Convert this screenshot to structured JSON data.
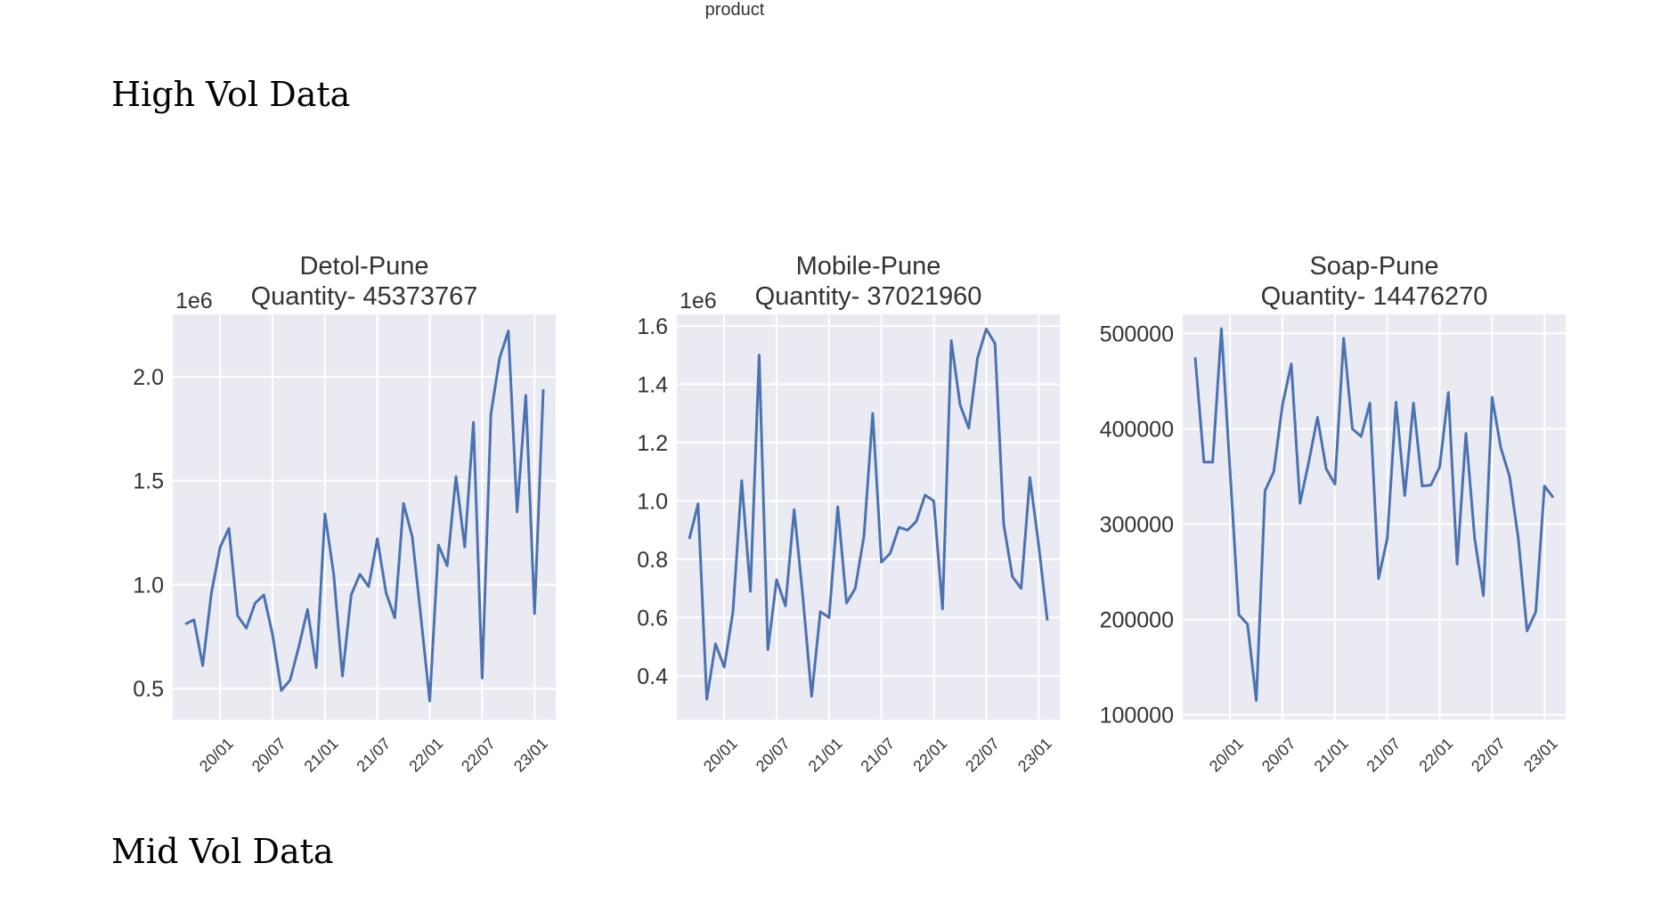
{
  "document": {
    "top_label": "product",
    "heading_high": "High Vol Data",
    "heading_mid": "Mid Vol Data"
  },
  "colors": {
    "line": "#4c72b0",
    "plot_bg": "#eaeaf2",
    "grid": "#ffffff",
    "text": "#333333"
  },
  "chart_data": [
    {
      "type": "line",
      "title": "Detol-Pune",
      "subtitle": "Quantity- 45373767",
      "offset_label": "1e6",
      "x_ticks": [
        "20/01",
        "20/07",
        "21/01",
        "21/07",
        "22/01",
        "22/07",
        "23/01"
      ],
      "y_ticks": [
        "0.5",
        "1.0",
        "1.5",
        "2.0"
      ],
      "y_tick_values": [
        500000,
        1000000,
        1500000,
        2000000
      ],
      "ylim": [
        350000,
        2300000
      ],
      "x_start": "2019-09",
      "grid": true,
      "values": [
        810000,
        830000,
        610000,
        960000,
        1180000,
        1270000,
        850000,
        790000,
        910000,
        950000,
        760000,
        490000,
        540000,
        700000,
        880000,
        600000,
        1340000,
        1050000,
        560000,
        950000,
        1050000,
        990000,
        1220000,
        960000,
        840000,
        1390000,
        1230000,
        840000,
        440000,
        1190000,
        1090000,
        1520000,
        1180000,
        1780000,
        550000,
        1820000,
        2090000,
        2220000,
        1350000,
        1910000,
        860000,
        1940000
      ]
    },
    {
      "type": "line",
      "title": "Mobile-Pune",
      "subtitle": "Quantity- 37021960",
      "offset_label": "1e6",
      "x_ticks": [
        "20/01",
        "20/07",
        "21/01",
        "21/07",
        "22/01",
        "22/07",
        "23/01"
      ],
      "y_ticks": [
        "0.4",
        "0.6",
        "0.8",
        "1.0",
        "1.2",
        "1.4",
        "1.6"
      ],
      "y_tick_values": [
        400000,
        600000,
        800000,
        1000000,
        1200000,
        1400000,
        1600000
      ],
      "ylim": [
        250000,
        1640000
      ],
      "x_start": "2019-09",
      "grid": true,
      "values": [
        870000,
        990000,
        320000,
        510000,
        430000,
        620000,
        1070000,
        690000,
        1500000,
        490000,
        730000,
        640000,
        970000,
        670000,
        330000,
        620000,
        600000,
        980000,
        650000,
        700000,
        880000,
        1300000,
        790000,
        820000,
        910000,
        900000,
        930000,
        1020000,
        1000000,
        630000,
        1550000,
        1330000,
        1250000,
        1490000,
        1590000,
        1540000,
        920000,
        740000,
        700000,
        1080000,
        850000,
        590000
      ]
    },
    {
      "type": "line",
      "title": "Soap-Pune",
      "subtitle": "Quantity- 14476270",
      "offset_label": "",
      "x_ticks": [
        "20/01",
        "20/07",
        "21/01",
        "21/07",
        "22/01",
        "22/07",
        "23/01"
      ],
      "y_ticks": [
        "100000",
        "200000",
        "300000",
        "400000",
        "500000"
      ],
      "y_tick_values": [
        100000,
        200000,
        300000,
        400000,
        500000
      ],
      "ylim": [
        95000,
        520000
      ],
      "x_start": "2019-09",
      "grid": true,
      "values": [
        475000,
        365000,
        365000,
        505000,
        355000,
        205000,
        195000,
        115000,
        335000,
        355000,
        425000,
        468000,
        322000,
        365000,
        412000,
        358000,
        342000,
        495000,
        400000,
        392000,
        427000,
        243000,
        285000,
        428000,
        330000,
        427000,
        340000,
        341000,
        360000,
        438000,
        258000,
        395000,
        285000,
        225000,
        433000,
        380000,
        350000,
        285000,
        188000,
        208000,
        340000,
        328000
      ]
    }
  ]
}
